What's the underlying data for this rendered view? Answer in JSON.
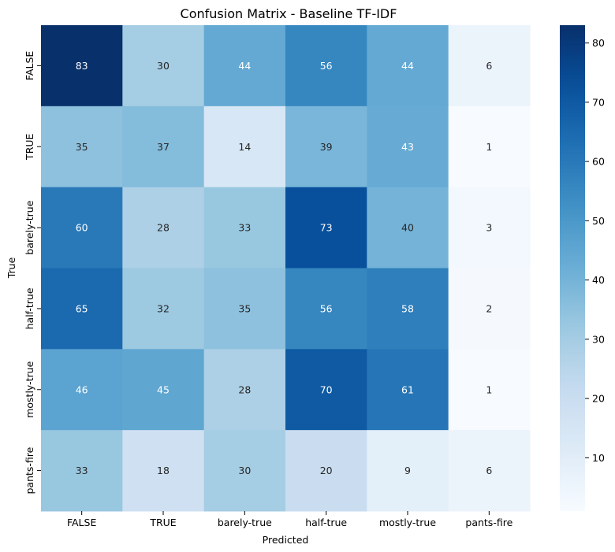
{
  "chart_data": {
    "type": "heatmap",
    "title": "Confusion Matrix - Baseline TF-IDF",
    "xlabel": "Predicted",
    "ylabel": "True",
    "x_categories": [
      "FALSE",
      "TRUE",
      "barely-true",
      "half-true",
      "mostly-true",
      "pants-fire"
    ],
    "y_categories": [
      "FALSE",
      "TRUE",
      "barely-true",
      "half-true",
      "mostly-true",
      "pants-fire"
    ],
    "values": [
      [
        83,
        30,
        44,
        56,
        44,
        6
      ],
      [
        35,
        37,
        14,
        39,
        43,
        1
      ],
      [
        60,
        28,
        33,
        73,
        40,
        3
      ],
      [
        65,
        32,
        35,
        56,
        58,
        2
      ],
      [
        46,
        45,
        28,
        70,
        61,
        1
      ],
      [
        33,
        18,
        30,
        20,
        9,
        6
      ]
    ],
    "colormap": "Blues",
    "vmin": 1,
    "vmax": 83,
    "colorbar_ticks": [
      10,
      20,
      30,
      40,
      50,
      60,
      70,
      80
    ]
  }
}
